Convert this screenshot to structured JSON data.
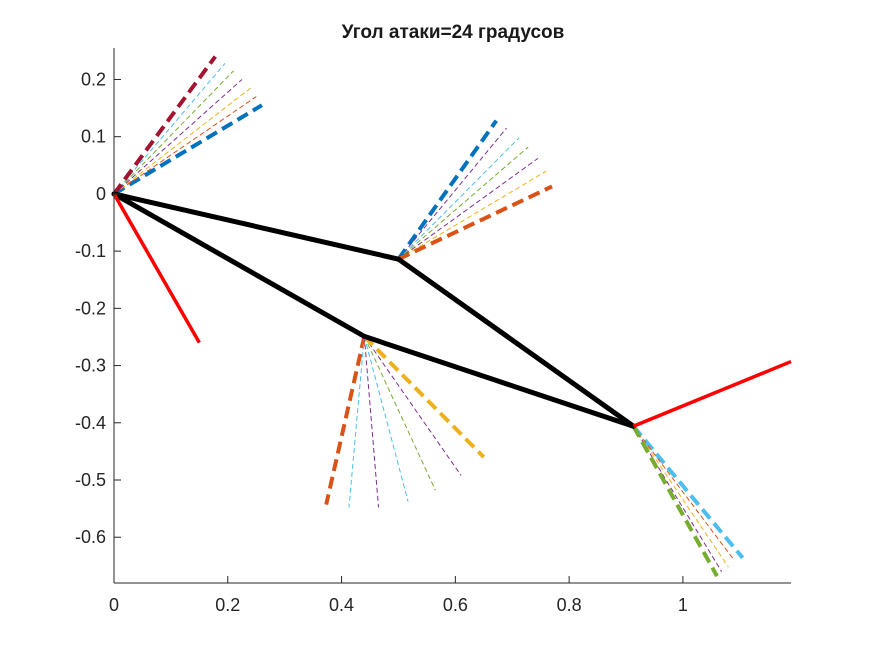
{
  "chart_data": {
    "type": "line",
    "title": "Угол атаки=24 градусов",
    "xlabel": "",
    "ylabel": "",
    "xlim": [
      0,
      1.19
    ],
    "ylim": [
      -0.68,
      0.255
    ],
    "x_ticks": [
      0,
      0.2,
      0.4,
      0.6,
      0.8,
      1
    ],
    "x_tick_labels": [
      "0",
      "0.2",
      "0.4",
      "0.6",
      "0.8",
      "1"
    ],
    "y_ticks": [
      0.2,
      0.1,
      0,
      -0.1,
      -0.2,
      -0.3,
      -0.4,
      -0.5,
      -0.6
    ],
    "y_tick_labels": [
      "0.2",
      "0.1",
      "0",
      "-0.1",
      "-0.2",
      "-0.3",
      "-0.4",
      "-0.5",
      "-0.6"
    ],
    "grid": false,
    "colors": {
      "frame": "#000000",
      "normal": "#ff0000",
      "blue": "#0072bd",
      "orange": "#d95319",
      "yellow": "#edb120",
      "purple": "#7e2f8e",
      "green": "#77ac30",
      "cyan": "#4dbeee",
      "maroon": "#a2142f"
    },
    "frame_lines": [
      {
        "x": [
          0,
          0.5
        ],
        "y": [
          0,
          -0.114
        ]
      },
      {
        "x": [
          0.5,
          0.913
        ],
        "y": [
          -0.114,
          -0.406
        ]
      },
      {
        "x": [
          0.913,
          0.44
        ],
        "y": [
          -0.406,
          -0.249
        ]
      },
      {
        "x": [
          0.44,
          0
        ],
        "y": [
          -0.249,
          0
        ]
      }
    ],
    "normal_lines": [
      {
        "x": [
          0,
          0.15
        ],
        "y": [
          0,
          -0.26
        ]
      },
      {
        "x": [
          0.913,
          1.19
        ],
        "y": [
          -0.406,
          -0.293
        ]
      }
    ],
    "fans": [
      {
        "origin": [
          0,
          0
        ],
        "rays": [
          {
            "end": [
              0.26,
              0.155
            ],
            "color": "blue",
            "bold": true
          },
          {
            "end": [
              0.25,
              0.17
            ],
            "color": "orange",
            "bold": false
          },
          {
            "end": [
              0.24,
              0.185
            ],
            "color": "yellow",
            "bold": false
          },
          {
            "end": [
              0.225,
              0.2
            ],
            "color": "purple",
            "bold": false
          },
          {
            "end": [
              0.21,
              0.215
            ],
            "color": "green",
            "bold": false
          },
          {
            "end": [
              0.195,
              0.228
            ],
            "color": "cyan",
            "bold": false
          },
          {
            "end": [
              0.178,
              0.24
            ],
            "color": "maroon",
            "bold": true
          }
        ]
      },
      {
        "origin": [
          0.5,
          -0.114
        ],
        "rays": [
          {
            "end": [
              0.672,
              0.128
            ],
            "color": "blue",
            "bold": true
          },
          {
            "end": [
              0.69,
              0.115
            ],
            "color": "purple",
            "bold": false
          },
          {
            "end": [
              0.712,
              0.098
            ],
            "color": "cyan",
            "bold": false
          },
          {
            "end": [
              0.728,
              0.082
            ],
            "color": "green",
            "bold": false
          },
          {
            "end": [
              0.745,
              0.062
            ],
            "color": "purple",
            "bold": false
          },
          {
            "end": [
              0.76,
              0.04
            ],
            "color": "yellow",
            "bold": false
          },
          {
            "end": [
              0.77,
              0.013
            ],
            "color": "orange",
            "bold": true
          }
        ]
      },
      {
        "origin": [
          0.44,
          -0.249
        ],
        "rays": [
          {
            "end": [
              0.373,
              -0.543
            ],
            "color": "orange",
            "bold": true
          },
          {
            "end": [
              0.413,
              -0.548
            ],
            "color": "cyan",
            "bold": false
          },
          {
            "end": [
              0.465,
              -0.548
            ],
            "color": "purple",
            "bold": false
          },
          {
            "end": [
              0.517,
              -0.538
            ],
            "color": "cyan",
            "bold": false
          },
          {
            "end": [
              0.565,
              -0.518
            ],
            "color": "green",
            "bold": false
          },
          {
            "end": [
              0.61,
              -0.492
            ],
            "color": "purple",
            "bold": false
          },
          {
            "end": [
              0.65,
              -0.46
            ],
            "color": "yellow",
            "bold": true
          }
        ]
      },
      {
        "origin": [
          0.913,
          -0.406
        ],
        "rays": [
          {
            "end": [
              1.105,
              -0.636
            ],
            "color": "cyan",
            "bold": true
          },
          {
            "end": [
              1.09,
              -0.64
            ],
            "color": "orange",
            "bold": false
          },
          {
            "end": [
              1.08,
              -0.652
            ],
            "color": "yellow",
            "bold": false
          },
          {
            "end": [
              1.068,
              -0.66
            ],
            "color": "purple",
            "bold": false
          },
          {
            "end": [
              1.06,
              -0.668
            ],
            "color": "green",
            "bold": true
          }
        ]
      }
    ]
  }
}
